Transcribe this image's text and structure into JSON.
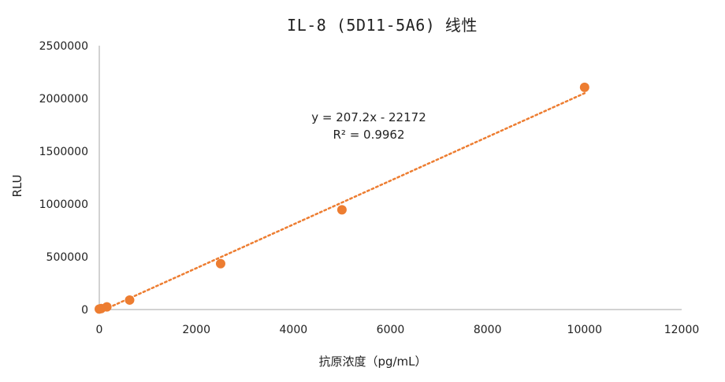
{
  "chart_data": {
    "type": "scatter",
    "title": "IL-8 (5D11-5A6) 线性",
    "xlabel": "抗原浓度（pg/mL）",
    "ylabel": "RLU",
    "xlim": [
      0,
      12000
    ],
    "ylim": [
      0,
      2500000
    ],
    "x_ticks": [
      "0",
      "2000",
      "4000",
      "6000",
      "8000",
      "10000",
      "12000"
    ],
    "y_ticks": [
      "0",
      "500000",
      "1000000",
      "1500000",
      "2000000",
      "2500000"
    ],
    "grid": false,
    "legend": "none",
    "series": [
      {
        "x": [
          0,
          39,
          156,
          625,
          2500,
          5000,
          10000
        ],
        "y": [
          5000,
          9000,
          25000,
          90000,
          435000,
          945000,
          2105000
        ],
        "color": "#ED7D31"
      }
    ],
    "trendline": {
      "type": "linear",
      "slope": 207.2,
      "intercept": -22172,
      "style": "dotted",
      "color": "#ED7D31",
      "equation": "y = 207.2x - 22172",
      "r2": "R² = 0.9962"
    }
  }
}
